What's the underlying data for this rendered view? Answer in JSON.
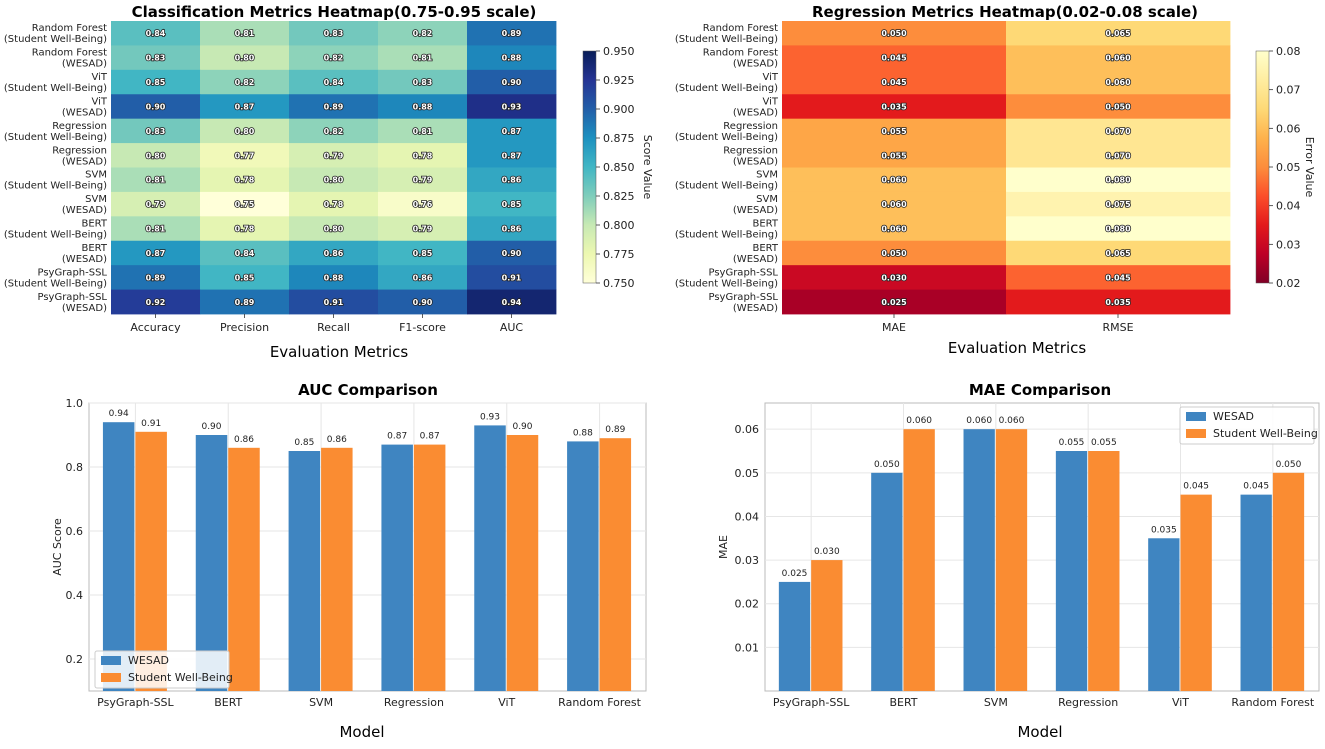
{
  "colors": {
    "wesad": "#3f85c1",
    "student": "#fa8c32",
    "grid": "#e6e6e6",
    "axis": "#bbbbbb"
  },
  "chart_data": [
    {
      "id": "classification",
      "type": "heatmap",
      "title": "Classification Metrics Heatmap(0.75-0.95 scale)",
      "xlabel": "Evaluation Metrics",
      "colorbar_label": "Score Value",
      "colorbar_range": [
        0.75,
        0.95
      ],
      "colorbar_ticks": [
        "0.750",
        "0.775",
        "0.800",
        "0.825",
        "0.850",
        "0.875",
        "0.900",
        "0.925",
        "0.950"
      ],
      "colormap": "YlGnBu",
      "columns": [
        "Accuracy",
        "Precision",
        "Recall",
        "F1-score",
        "AUC"
      ],
      "rows": [
        {
          "model": "Random Forest",
          "dataset": "(Student Well-Being)",
          "values": [
            0.84,
            0.81,
            0.83,
            0.82,
            0.89
          ]
        },
        {
          "model": "Random Forest",
          "dataset": "(WESAD)",
          "values": [
            0.83,
            0.8,
            0.82,
            0.81,
            0.88
          ]
        },
        {
          "model": "ViT",
          "dataset": "(Student Well-Being)",
          "values": [
            0.85,
            0.82,
            0.84,
            0.83,
            0.9
          ]
        },
        {
          "model": "ViT",
          "dataset": "(WESAD)",
          "values": [
            0.9,
            0.87,
            0.89,
            0.88,
            0.93
          ]
        },
        {
          "model": "Regression",
          "dataset": "(Student Well-Being)",
          "values": [
            0.83,
            0.8,
            0.82,
            0.81,
            0.87
          ]
        },
        {
          "model": "Regression",
          "dataset": "(WESAD)",
          "values": [
            0.8,
            0.77,
            0.79,
            0.78,
            0.87
          ]
        },
        {
          "model": "SVM",
          "dataset": "(Student Well-Being)",
          "values": [
            0.81,
            0.78,
            0.8,
            0.79,
            0.86
          ]
        },
        {
          "model": "SVM",
          "dataset": "(WESAD)",
          "values": [
            0.79,
            0.75,
            0.78,
            0.76,
            0.85
          ]
        },
        {
          "model": "BERT",
          "dataset": "(Student Well-Being)",
          "values": [
            0.81,
            0.78,
            0.8,
            0.79,
            0.86
          ]
        },
        {
          "model": "BERT",
          "dataset": "(WESAD)",
          "values": [
            0.87,
            0.84,
            0.86,
            0.85,
            0.9
          ]
        },
        {
          "model": "PsyGraph-SSL",
          "dataset": "(Student Well-Being)",
          "values": [
            0.89,
            0.85,
            0.88,
            0.86,
            0.91
          ]
        },
        {
          "model": "PsyGraph-SSL",
          "dataset": "(WESAD)",
          "values": [
            0.92,
            0.89,
            0.91,
            0.9,
            0.94
          ]
        }
      ]
    },
    {
      "id": "regression",
      "type": "heatmap",
      "title": "Regression Metrics Heatmap(0.02-0.08 scale)",
      "xlabel": "Evaluation Metrics",
      "colorbar_label": "Error Value",
      "colorbar_range": [
        0.02,
        0.08
      ],
      "colorbar_ticks": [
        "0.02",
        "0.03",
        "0.04",
        "0.05",
        "0.06",
        "0.07",
        "0.08"
      ],
      "colormap": "YlOrRd_r",
      "columns": [
        "MAE",
        "RMSE"
      ],
      "rows": [
        {
          "model": "Random Forest",
          "dataset": "(Student Well-Being)",
          "values": [
            0.05,
            0.065
          ]
        },
        {
          "model": "Random Forest",
          "dataset": "(WESAD)",
          "values": [
            0.045,
            0.06
          ]
        },
        {
          "model": "ViT",
          "dataset": "(Student Well-Being)",
          "values": [
            0.045,
            0.06
          ]
        },
        {
          "model": "ViT",
          "dataset": "(WESAD)",
          "values": [
            0.035,
            0.05
          ]
        },
        {
          "model": "Regression",
          "dataset": "(Student Well-Being)",
          "values": [
            0.055,
            0.07
          ]
        },
        {
          "model": "Regression",
          "dataset": "(WESAD)",
          "values": [
            0.055,
            0.07
          ]
        },
        {
          "model": "SVM",
          "dataset": "(Student Well-Being)",
          "values": [
            0.06,
            0.08
          ]
        },
        {
          "model": "SVM",
          "dataset": "(WESAD)",
          "values": [
            0.06,
            0.075
          ]
        },
        {
          "model": "BERT",
          "dataset": "(Student Well-Being)",
          "values": [
            0.06,
            0.08
          ]
        },
        {
          "model": "BERT",
          "dataset": "(WESAD)",
          "values": [
            0.05,
            0.065
          ]
        },
        {
          "model": "PsyGraph-SSL",
          "dataset": "(Student Well-Being)",
          "values": [
            0.03,
            0.045
          ]
        },
        {
          "model": "PsyGraph-SSL",
          "dataset": "(WESAD)",
          "values": [
            0.025,
            0.035
          ]
        }
      ]
    },
    {
      "id": "auc",
      "type": "bar",
      "title": "AUC Comparison",
      "xlabel": "Model",
      "ylabel": "AUC Score",
      "ylim": [
        0.1,
        1.0
      ],
      "yticks": [
        "0.2",
        "0.4",
        "0.6",
        "0.8",
        "1.0"
      ],
      "legend_position": "bottom-left",
      "categories": [
        "PsyGraph-SSL",
        "BERT",
        "SVM",
        "Regression",
        "ViT",
        "Random Forest"
      ],
      "series": [
        {
          "name": "WESAD",
          "values": [
            0.94,
            0.9,
            0.85,
            0.87,
            0.93,
            0.88
          ],
          "labels": [
            "0.94",
            "0.90",
            "0.85",
            "0.87",
            "0.93",
            "0.88"
          ]
        },
        {
          "name": "Student Well-Being",
          "values": [
            0.91,
            0.86,
            0.86,
            0.87,
            0.9,
            0.89
          ],
          "labels": [
            "0.91",
            "0.86",
            "0.86",
            "0.87",
            "0.90",
            "0.89"
          ]
        }
      ]
    },
    {
      "id": "mae",
      "type": "bar",
      "title": "MAE Comparison",
      "xlabel": "Model",
      "ylabel": "MAE",
      "ylim": [
        0.0,
        0.066
      ],
      "yticks": [
        "0.01",
        "0.02",
        "0.03",
        "0.04",
        "0.05",
        "0.06"
      ],
      "legend_position": "top-right",
      "categories": [
        "PsyGraph-SSL",
        "BERT",
        "SVM",
        "Regression",
        "ViT",
        "Random Forest"
      ],
      "series": [
        {
          "name": "WESAD",
          "values": [
            0.025,
            0.05,
            0.06,
            0.055,
            0.035,
            0.045
          ],
          "labels": [
            "0.025",
            "0.050",
            "0.060",
            "0.055",
            "0.035",
            "0.045"
          ]
        },
        {
          "name": "Student Well-Being",
          "values": [
            0.03,
            0.06,
            0.06,
            0.055,
            0.045,
            0.05
          ],
          "labels": [
            "0.030",
            "0.060",
            "0.060",
            "0.055",
            "0.045",
            "0.050"
          ]
        }
      ]
    }
  ]
}
